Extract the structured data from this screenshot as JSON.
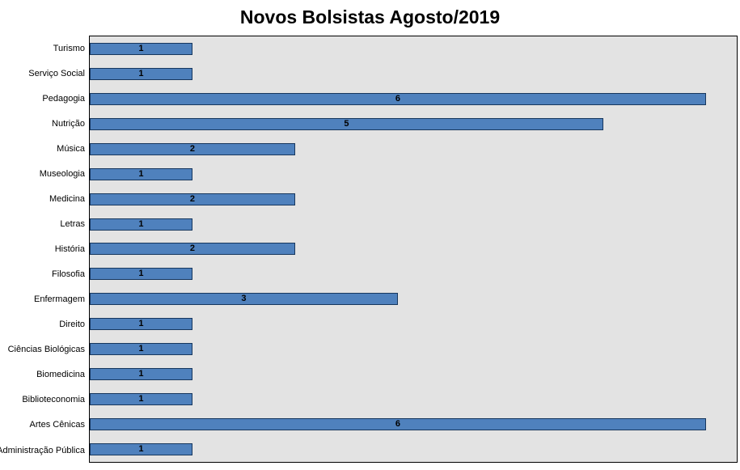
{
  "chart_data": {
    "type": "bar",
    "orientation": "horizontal",
    "title": "Novos Bolsistas Agosto/2019",
    "categories": [
      "Turismo",
      "Serviço Social",
      "Pedagogia",
      "Nutrição",
      "Música",
      "Museologia",
      "Medicina",
      "Letras",
      "História",
      "Filosofia",
      "Enfermagem",
      "Direito",
      "Ciências Biológicas",
      "Biomedicina",
      "Biblioteconomia",
      "Artes Cênicas",
      "Administração Pública"
    ],
    "values": [
      1,
      1,
      6,
      5,
      2,
      1,
      2,
      1,
      2,
      1,
      3,
      1,
      1,
      1,
      1,
      6,
      1
    ],
    "xlabel": "",
    "ylabel": "",
    "xlim": [
      0,
      6.3
    ],
    "grid": false,
    "legend": "none",
    "data_labels": true,
    "bar_color": "#4F81BD",
    "bar_border_color": "#17375E",
    "plot_bg": "#E3E3E3",
    "title_color": "#000000",
    "label_color": "#000000"
  }
}
